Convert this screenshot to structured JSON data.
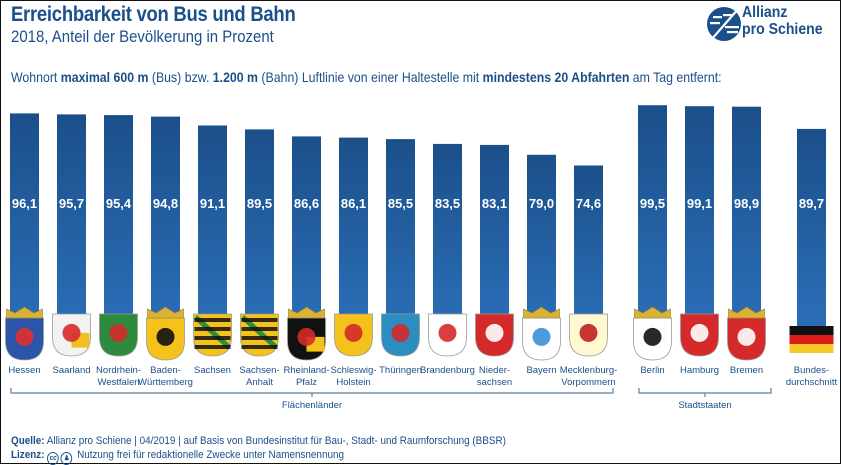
{
  "header": {
    "title": "Erreichbarkeit von Bus und Bahn",
    "subtitle": "2018, Anteil der Bevölkerung in Prozent",
    "description_parts": [
      {
        "text": "Wohnort ",
        "bold": false
      },
      {
        "text": "maximal 600 m",
        "bold": true
      },
      {
        "text": " (Bus) bzw. ",
        "bold": false
      },
      {
        "text": "1.200 m",
        "bold": true
      },
      {
        "text": " (Bahn) Luftlinie von einer Haltestelle mit ",
        "bold": false
      },
      {
        "text": "mindestens 20 Abfahrten",
        "bold": true
      },
      {
        "text": " am Tag entfernt:",
        "bold": false
      }
    ]
  },
  "logo": {
    "line1": "Allianz",
    "line2": "pro Schiene",
    "icon": "allianz-pro-schiene-logo-icon"
  },
  "colors": {
    "bar_top": "#1b4f8a",
    "bar_bottom": "#2a6db5",
    "text": "#1b4f8a",
    "bracket": "#5a7fa8"
  },
  "chart_data": {
    "type": "bar",
    "title": "Erreichbarkeit von Bus und Bahn",
    "subtitle": "2018, Anteil der Bevölkerung in Prozent",
    "xlabel": "",
    "ylabel": "",
    "ylim": [
      0,
      100
    ],
    "grid": false,
    "value_format": "comma-decimal",
    "categories": [
      {
        "name": "Hessen",
        "label_lines": [
          "Hessen"
        ],
        "value": 96.1,
        "group": "Flächenländer",
        "emblem": "hessen-coat-of-arms-icon"
      },
      {
        "name": "Saarland",
        "label_lines": [
          "Saarland"
        ],
        "value": 95.7,
        "group": "Flächenländer",
        "emblem": "saarland-coat-of-arms-icon"
      },
      {
        "name": "Nordrhein-Westfalen",
        "label_lines": [
          "Nordrhein-",
          "Westfalen"
        ],
        "value": 95.4,
        "group": "Flächenländer",
        "emblem": "nrw-coat-of-arms-icon"
      },
      {
        "name": "Baden-Württemberg",
        "label_lines": [
          "Baden-",
          "Württemberg"
        ],
        "value": 94.8,
        "group": "Flächenländer",
        "emblem": "bw-coat-of-arms-icon"
      },
      {
        "name": "Sachsen",
        "label_lines": [
          "Sachsen"
        ],
        "value": 91.1,
        "group": "Flächenländer",
        "emblem": "sachsen-coat-of-arms-icon"
      },
      {
        "name": "Sachsen-Anhalt",
        "label_lines": [
          "Sachsen-",
          "Anhalt"
        ],
        "value": 89.5,
        "group": "Flächenländer",
        "emblem": "sachsen-anhalt-coat-of-arms-icon"
      },
      {
        "name": "Rheinland-Pfalz",
        "label_lines": [
          "Rheinland-",
          "Pfalz"
        ],
        "value": 86.6,
        "group": "Flächenländer",
        "emblem": "rlp-coat-of-arms-icon"
      },
      {
        "name": "Schleswig-Holstein",
        "label_lines": [
          "Schleswig-",
          "Holstein"
        ],
        "value": 86.1,
        "group": "Flächenländer",
        "emblem": "sh-coat-of-arms-icon"
      },
      {
        "name": "Thüringen",
        "label_lines": [
          "Thüringen"
        ],
        "value": 85.5,
        "group": "Flächenländer",
        "emblem": "thueringen-coat-of-arms-icon"
      },
      {
        "name": "Brandenburg",
        "label_lines": [
          "Brandenburg"
        ],
        "value": 83.5,
        "group": "Flächenländer",
        "emblem": "brandenburg-coat-of-arms-icon"
      },
      {
        "name": "Niedersachsen",
        "label_lines": [
          "Nieder-",
          "sachsen"
        ],
        "value": 83.1,
        "group": "Flächenländer",
        "emblem": "niedersachsen-coat-of-arms-icon"
      },
      {
        "name": "Bayern",
        "label_lines": [
          "Bayern"
        ],
        "value": 79.0,
        "group": "Flächenländer",
        "emblem": "bayern-coat-of-arms-icon"
      },
      {
        "name": "Mecklenburg-Vorpommern",
        "label_lines": [
          "Mecklenburg-",
          "Vorpommern"
        ],
        "value": 74.6,
        "group": "Flächenländer",
        "emblem": "mv-coat-of-arms-icon"
      },
      {
        "name": "Berlin",
        "label_lines": [
          "Berlin"
        ],
        "value": 99.5,
        "group": "Stadtstaaten",
        "emblem": "berlin-coat-of-arms-icon"
      },
      {
        "name": "Hamburg",
        "label_lines": [
          "Hamburg"
        ],
        "value": 99.1,
        "group": "Stadtstaaten",
        "emblem": "hamburg-coat-of-arms-icon"
      },
      {
        "name": "Bremen",
        "label_lines": [
          "Bremen"
        ],
        "value": 98.9,
        "group": "Stadtstaaten",
        "emblem": "bremen-coat-of-arms-icon"
      },
      {
        "name": "Bundesdurchschnitt",
        "label_lines": [
          "Bundes-",
          "durchschnitt"
        ],
        "value": 89.7,
        "group": "",
        "emblem": "germany-flag-icon"
      }
    ],
    "values": [
      96.1,
      95.7,
      95.4,
      94.8,
      91.1,
      89.5,
      86.6,
      86.1,
      85.5,
      83.5,
      83.1,
      79.0,
      74.6,
      99.5,
      99.1,
      98.9,
      89.7
    ],
    "value_labels": [
      "96,1",
      "95,7",
      "95,4",
      "94,8",
      "91,1",
      "89,5",
      "86,6",
      "86,1",
      "85,5",
      "83,5",
      "83,1",
      "79,0",
      "74,6",
      "99,5",
      "99,1",
      "98,9",
      "89,7"
    ],
    "groups": [
      {
        "label": "Flächenländer",
        "from": 0,
        "to": 12
      },
      {
        "label": "Stadtstaaten",
        "from": 13,
        "to": 15
      }
    ]
  },
  "footer": {
    "source_label": "Quelle:",
    "source_text": "Allianz pro Schiene | 04/2019 | auf Basis von Bundesinstitut für Bau-, Stadt- und Raumforschung (BBSR)",
    "license_label": "Lizenz:",
    "license_icons": [
      "cc-icon",
      "by-attribution-icon"
    ],
    "license_text": "Nutzung frei für redaktionelle Zwecke unter Namensnennung"
  }
}
